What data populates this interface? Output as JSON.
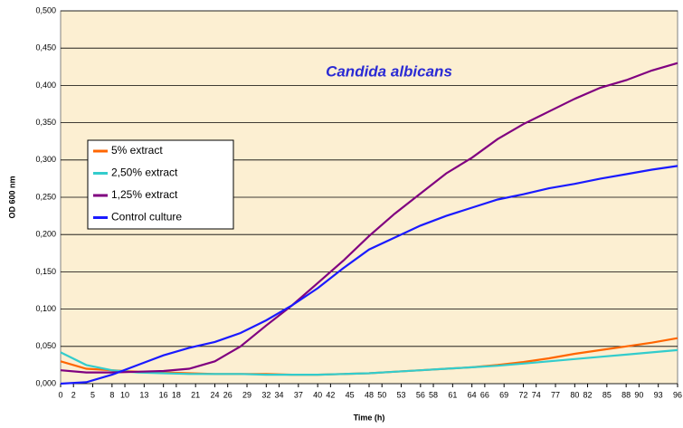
{
  "chart_data": {
    "type": "line",
    "title": "Candida albicans",
    "xlabel": "Time (h)",
    "ylabel": "OD 600 nm",
    "x": [
      0,
      4,
      8,
      12,
      16,
      20,
      24,
      28,
      32,
      36,
      40,
      44,
      48,
      52,
      56,
      60,
      64,
      68,
      72,
      76,
      80,
      84,
      88,
      92,
      96
    ],
    "series": [
      {
        "name": "5% extract",
        "color": "#ff6600",
        "values": [
          0.03,
          0.02,
          0.018,
          0.016,
          0.015,
          0.014,
          0.013,
          0.013,
          0.013,
          0.012,
          0.012,
          0.013,
          0.014,
          0.016,
          0.018,
          0.02,
          0.022,
          0.025,
          0.029,
          0.034,
          0.04,
          0.045,
          0.05,
          0.055,
          0.061
        ]
      },
      {
        "name": "2,50% extract",
        "color": "#33cccc",
        "values": [
          0.042,
          0.025,
          0.018,
          0.015,
          0.014,
          0.013,
          0.013,
          0.013,
          0.012,
          0.012,
          0.012,
          0.013,
          0.014,
          0.016,
          0.018,
          0.02,
          0.022,
          0.024,
          0.027,
          0.03,
          0.033,
          0.036,
          0.039,
          0.042,
          0.045
        ]
      },
      {
        "name": "1,25% extract",
        "color": "#800080",
        "values": [
          0.018,
          0.015,
          0.015,
          0.016,
          0.017,
          0.02,
          0.03,
          0.05,
          0.078,
          0.105,
          0.135,
          0.165,
          0.198,
          0.228,
          0.255,
          0.282,
          0.303,
          0.328,
          0.348,
          0.365,
          0.382,
          0.397,
          0.407,
          0.42,
          0.43
        ]
      },
      {
        "name": "Control culture",
        "color": "#1a1aff",
        "values": [
          0.0,
          0.002,
          0.012,
          0.025,
          0.038,
          0.048,
          0.056,
          0.068,
          0.085,
          0.105,
          0.128,
          0.155,
          0.18,
          0.196,
          0.212,
          0.225,
          0.236,
          0.247,
          0.254,
          0.262,
          0.268,
          0.275,
          0.281,
          0.287,
          0.292
        ]
      }
    ],
    "xlim": [
      0,
      96
    ],
    "xticks": [
      0,
      2,
      5,
      8,
      10,
      13,
      16,
      18,
      21,
      24,
      26,
      29,
      32,
      34,
      37,
      40,
      42,
      45,
      48,
      50,
      53,
      56,
      58,
      61,
      64,
      66,
      69,
      72,
      74,
      77,
      80,
      82,
      85,
      88,
      90,
      93,
      96
    ],
    "ylim": [
      0,
      0.5
    ],
    "yticks": [
      {
        "value": 0,
        "label": "0,000"
      },
      {
        "value": 0.05,
        "label": "0,050"
      },
      {
        "value": 0.1,
        "label": "0,100"
      },
      {
        "value": 0.15,
        "label": "0,150"
      },
      {
        "value": 0.2,
        "label": "0,200"
      },
      {
        "value": 0.25,
        "label": "0,250"
      },
      {
        "value": 0.3,
        "label": "0,300"
      },
      {
        "value": 0.35,
        "label": "0,350"
      },
      {
        "value": 0.4,
        "label": "0,400"
      },
      {
        "value": 0.45,
        "label": "0,450"
      },
      {
        "value": 0.5,
        "label": "0,500"
      }
    ],
    "grid": true
  }
}
